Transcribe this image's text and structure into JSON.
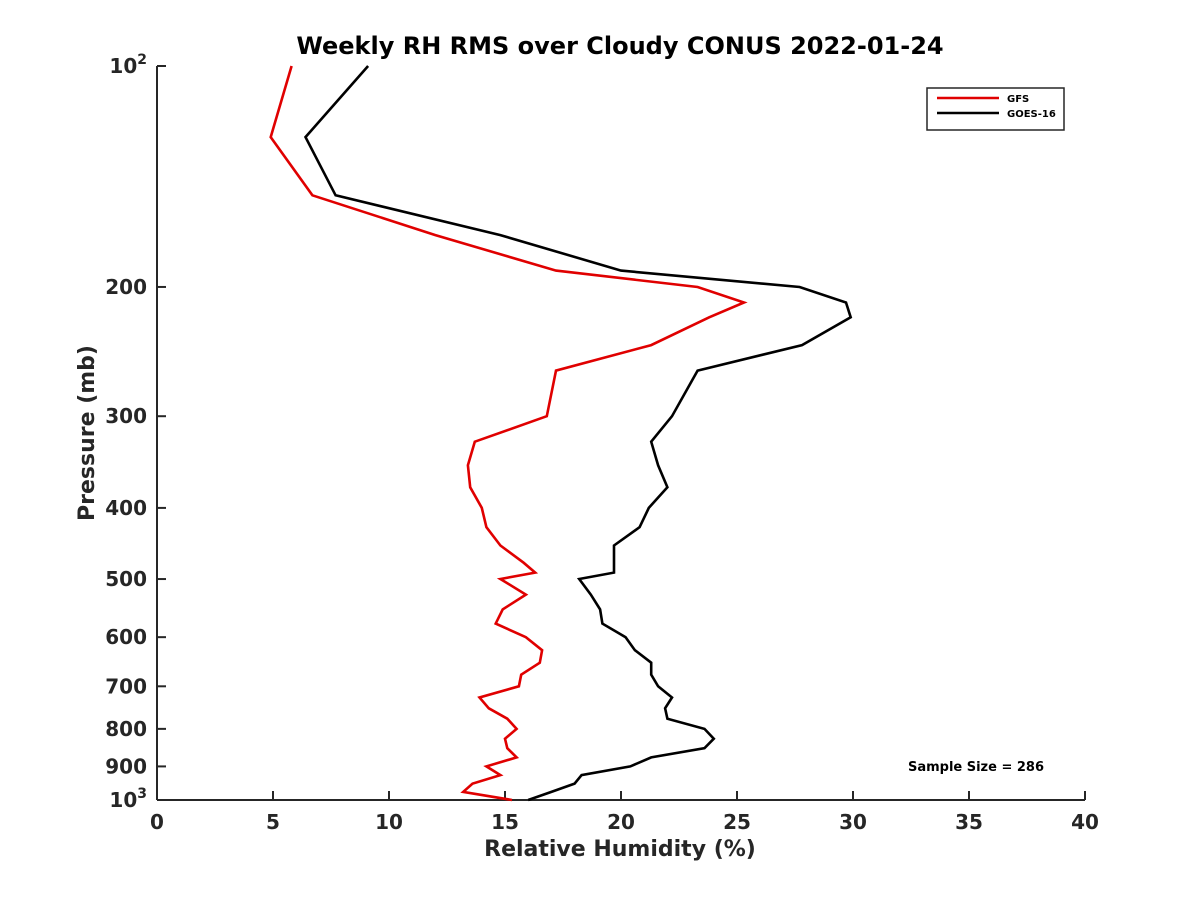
{
  "chart_data": {
    "type": "line",
    "title": "Weekly RH RMS over Cloudy CONUS 2022-01-24",
    "xlabel": "Relative Humidity (%)",
    "ylabel": "Pressure (mb)",
    "xlim": [
      0,
      40
    ],
    "ylim": [
      100,
      1000
    ],
    "yscale": "log",
    "yreversed": true,
    "grid": false,
    "legend_position": "top-right",
    "x_ticks": [
      "0",
      "5",
      "10",
      "15",
      "20",
      "25",
      "30",
      "35",
      "40"
    ],
    "y_ticks": [
      {
        "value": 100,
        "base": "10",
        "exp": "2"
      },
      {
        "value": 200,
        "label": "200"
      },
      {
        "value": 300,
        "label": "300"
      },
      {
        "value": 400,
        "label": "400"
      },
      {
        "value": 500,
        "label": "500"
      },
      {
        "value": 600,
        "label": "600"
      },
      {
        "value": 700,
        "label": "700"
      },
      {
        "value": 800,
        "label": "800"
      },
      {
        "value": 900,
        "label": "900"
      },
      {
        "value": 1000,
        "base": "10",
        "exp": "3"
      }
    ],
    "annotation": "Sample Size = 286",
    "series": [
      {
        "name": "GFS",
        "color": "#e00000",
        "points": [
          {
            "x": 5.8,
            "p": 100
          },
          {
            "x": 4.9,
            "p": 125
          },
          {
            "x": 6.7,
            "p": 150
          },
          {
            "x": 12.0,
            "p": 170
          },
          {
            "x": 17.2,
            "p": 190
          },
          {
            "x": 23.3,
            "p": 200
          },
          {
            "x": 25.3,
            "p": 210
          },
          {
            "x": 23.8,
            "p": 220
          },
          {
            "x": 21.3,
            "p": 240
          },
          {
            "x": 17.2,
            "p": 260
          },
          {
            "x": 16.8,
            "p": 300
          },
          {
            "x": 13.7,
            "p": 325
          },
          {
            "x": 13.4,
            "p": 350
          },
          {
            "x": 13.5,
            "p": 375
          },
          {
            "x": 14.0,
            "p": 400
          },
          {
            "x": 14.2,
            "p": 425
          },
          {
            "x": 14.8,
            "p": 450
          },
          {
            "x": 15.8,
            "p": 475
          },
          {
            "x": 16.3,
            "p": 490
          },
          {
            "x": 14.8,
            "p": 500
          },
          {
            "x": 15.9,
            "p": 525
          },
          {
            "x": 14.9,
            "p": 550
          },
          {
            "x": 14.6,
            "p": 575
          },
          {
            "x": 15.9,
            "p": 600
          },
          {
            "x": 16.6,
            "p": 625
          },
          {
            "x": 16.5,
            "p": 650
          },
          {
            "x": 15.7,
            "p": 675
          },
          {
            "x": 15.6,
            "p": 700
          },
          {
            "x": 13.9,
            "p": 725
          },
          {
            "x": 14.3,
            "p": 750
          },
          {
            "x": 15.1,
            "p": 775
          },
          {
            "x": 15.5,
            "p": 800
          },
          {
            "x": 15.0,
            "p": 825
          },
          {
            "x": 15.1,
            "p": 850
          },
          {
            "x": 15.5,
            "p": 875
          },
          {
            "x": 14.2,
            "p": 900
          },
          {
            "x": 14.8,
            "p": 925
          },
          {
            "x": 13.6,
            "p": 950
          },
          {
            "x": 13.2,
            "p": 975
          },
          {
            "x": 15.3,
            "p": 1000
          }
        ]
      },
      {
        "name": "GOES-16",
        "color": "#000000",
        "points": [
          {
            "x": 9.1,
            "p": 100
          },
          {
            "x": 6.4,
            "p": 125
          },
          {
            "x": 7.7,
            "p": 150
          },
          {
            "x": 14.8,
            "p": 170
          },
          {
            "x": 20.0,
            "p": 190
          },
          {
            "x": 27.7,
            "p": 200
          },
          {
            "x": 29.7,
            "p": 210
          },
          {
            "x": 29.9,
            "p": 220
          },
          {
            "x": 27.8,
            "p": 240
          },
          {
            "x": 23.3,
            "p": 260
          },
          {
            "x": 22.2,
            "p": 300
          },
          {
            "x": 21.3,
            "p": 325
          },
          {
            "x": 21.6,
            "p": 350
          },
          {
            "x": 22.0,
            "p": 375
          },
          {
            "x": 21.2,
            "p": 400
          },
          {
            "x": 20.8,
            "p": 425
          },
          {
            "x": 19.7,
            "p": 450
          },
          {
            "x": 19.7,
            "p": 475
          },
          {
            "x": 19.7,
            "p": 490
          },
          {
            "x": 18.2,
            "p": 500
          },
          {
            "x": 18.7,
            "p": 525
          },
          {
            "x": 19.1,
            "p": 550
          },
          {
            "x": 19.2,
            "p": 575
          },
          {
            "x": 20.2,
            "p": 600
          },
          {
            "x": 20.6,
            "p": 625
          },
          {
            "x": 21.3,
            "p": 650
          },
          {
            "x": 21.3,
            "p": 675
          },
          {
            "x": 21.6,
            "p": 700
          },
          {
            "x": 22.2,
            "p": 725
          },
          {
            "x": 21.9,
            "p": 750
          },
          {
            "x": 22.0,
            "p": 775
          },
          {
            "x": 23.6,
            "p": 800
          },
          {
            "x": 24.0,
            "p": 825
          },
          {
            "x": 23.6,
            "p": 850
          },
          {
            "x": 21.3,
            "p": 875
          },
          {
            "x": 20.4,
            "p": 900
          },
          {
            "x": 18.3,
            "p": 925
          },
          {
            "x": 18.0,
            "p": 950
          },
          {
            "x": 17.0,
            "p": 975
          },
          {
            "x": 16.0,
            "p": 1000
          }
        ]
      }
    ]
  }
}
